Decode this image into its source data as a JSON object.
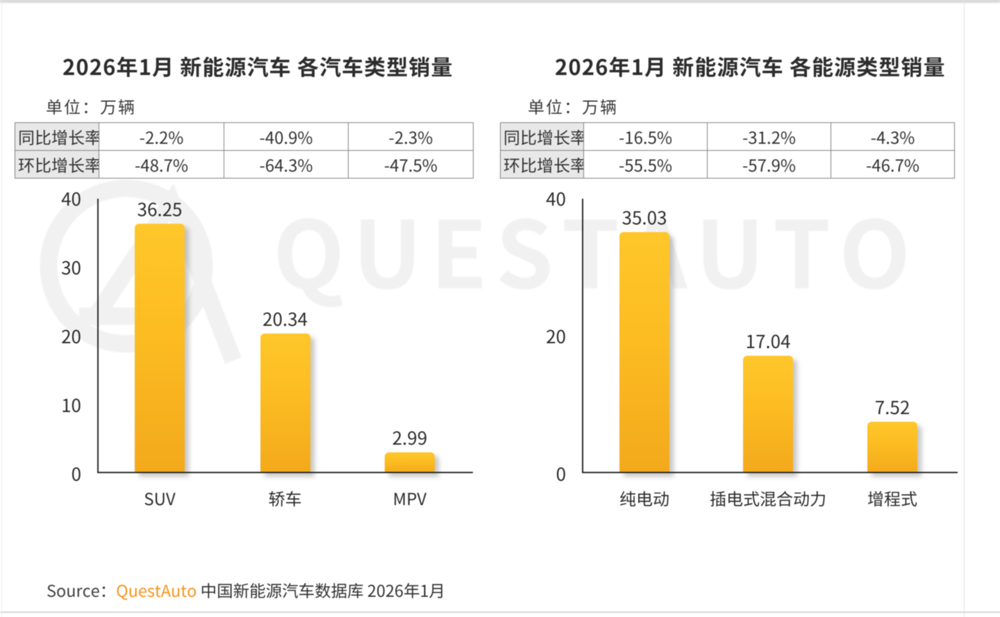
{
  "page": {
    "watermark_text": "QUESTAUTO",
    "source_prefix": "Source：",
    "source_brand": "QuestAuto",
    "source_suffix": "中国新能源汽车数据库 2026年1月"
  },
  "colors": {
    "bar_top": "#ffc72b",
    "bar_bottom": "#f3a91c",
    "brand_orange": "#f7941e",
    "watermark": "#f1f1f2",
    "text_dark": "#333333",
    "table_border": "#808080",
    "table_header_bg": "#e8e8e8"
  },
  "chart_data": [
    {
      "type": "bar",
      "title": "2026年1月 新能源汽车 各汽车类型销量",
      "unit_label": "单位：万辆",
      "categories": [
        "SUV",
        "轿车",
        "MPV"
      ],
      "values": [
        36.25,
        20.34,
        2.99
      ],
      "ylabel": "",
      "xlabel": "",
      "ylim": [
        0,
        40
      ],
      "yticks": [
        0,
        10,
        20,
        30,
        40
      ],
      "grid": false,
      "growth_table": {
        "rows": [
          {
            "label": "同比增长率",
            "values": [
              "-2.2%",
              "-40.9%",
              "-2.3%"
            ]
          },
          {
            "label": "环比增长率",
            "values": [
              "-48.7%",
              "-64.3%",
              "-47.5%"
            ]
          }
        ]
      }
    },
    {
      "type": "bar",
      "title": "2026年1月 新能源汽车 各能源类型销量",
      "unit_label": "单位：万辆",
      "categories": [
        "纯电动",
        "插电式混合动力",
        "增程式"
      ],
      "values": [
        35.03,
        17.04,
        7.52
      ],
      "ylabel": "",
      "xlabel": "",
      "ylim": [
        0,
        40
      ],
      "yticks": [
        0,
        20,
        40
      ],
      "grid": false,
      "growth_table": {
        "rows": [
          {
            "label": "同比增长率",
            "values": [
              "-16.5%",
              "-31.2%",
              "-4.3%"
            ]
          },
          {
            "label": "环比增长率",
            "values": [
              "-55.5%",
              "-57.9%",
              "-46.7%"
            ]
          }
        ]
      }
    }
  ]
}
